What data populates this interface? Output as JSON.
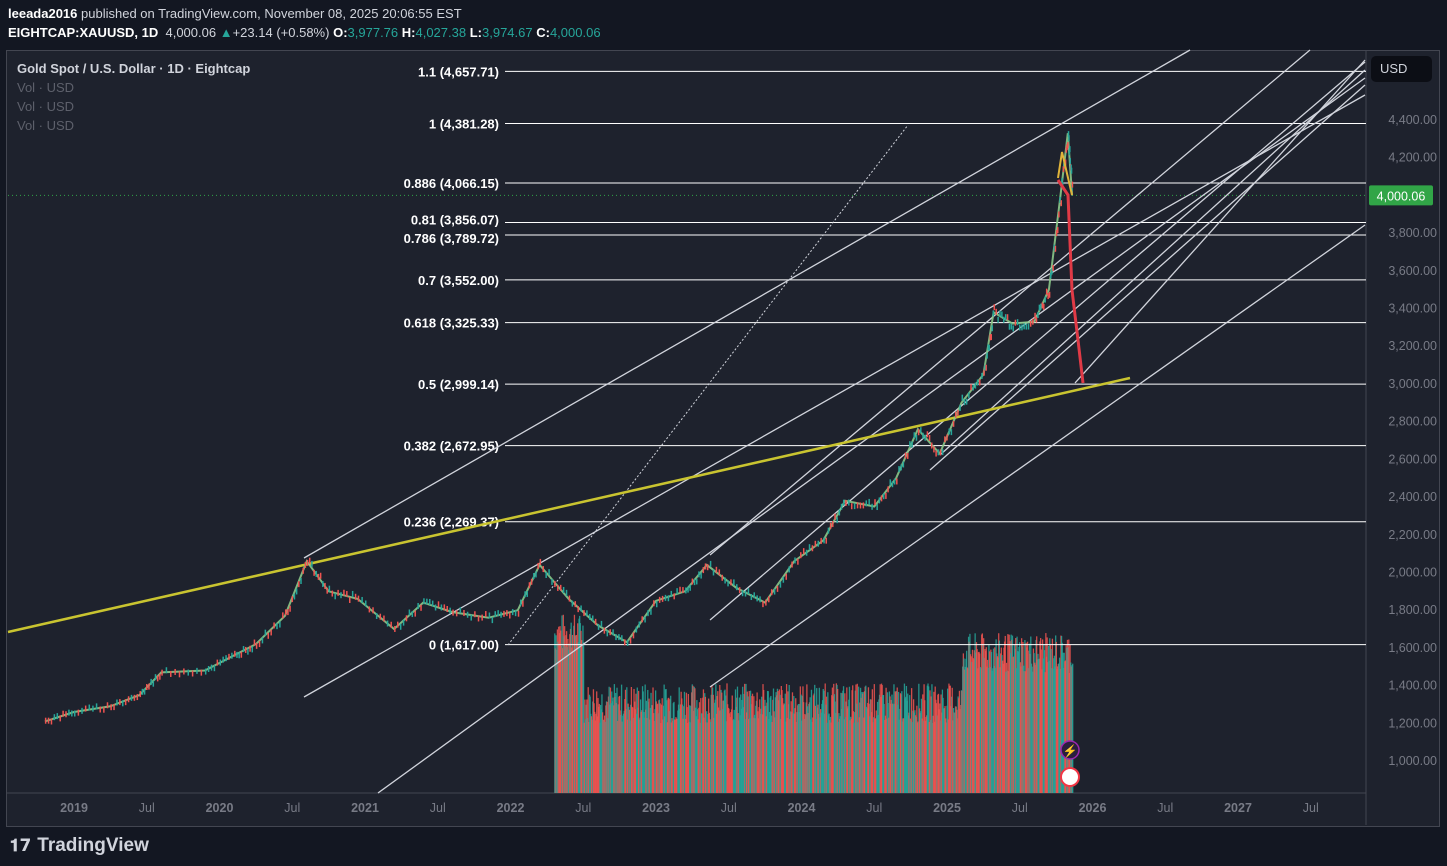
{
  "header": {
    "author": "leeada2016",
    "published": " published on TradingView.com, November 08, 2025 20:06:55 EST",
    "symbol": "EIGHTCAP:XAUUSD, 1D",
    "last": "4,000.06",
    "change": "+23.14 (+0.58%)",
    "o_label": "O:",
    "o": "3,977.76",
    "h_label": "H:",
    "h": "4,027.38",
    "l_label": "L:",
    "l": "3,974.67",
    "c_label": "C:",
    "c": "4,000.06"
  },
  "legend": {
    "title": "Gold Spot / U.S. Dollar · 1D · Eightcap",
    "vol": [
      "Vol · USD",
      "Vol · USD",
      "Vol · USD"
    ]
  },
  "currency": "USD",
  "price_tag": "4,000.06",
  "colors": {
    "bg": "#1e222d",
    "up": "#26a69a",
    "down": "#ef5350",
    "trend": "#c9c430",
    "fib": "#ffffff",
    "tag": "#31a547"
  },
  "brand": "TradingView",
  "chart_data": {
    "type": "line",
    "title": "Gold Spot / U.S. Dollar · 1D · Eightcap",
    "ylim": [
      850,
      4800
    ],
    "y_ticks": [
      "4,400.00",
      "4,200.00",
      "4,000.00",
      "3,800.00",
      "3,600.00",
      "3,400.00",
      "3,200.00",
      "3,000.00",
      "2,800.00",
      "2,600.00",
      "2,400.00",
      "2,200.00",
      "2,000.00",
      "1,800.00",
      "1,600.00",
      "1,400.00",
      "1,200.00",
      "1,000.00"
    ],
    "y_tick_values": [
      4400,
      4200,
      4000,
      3800,
      3600,
      3400,
      3200,
      3000,
      2800,
      2600,
      2400,
      2200,
      2000,
      1800,
      1600,
      1400,
      1200,
      1000
    ],
    "x_ticks": [
      "2019",
      "Jul",
      "2020",
      "Jul",
      "2021",
      "Jul",
      "2022",
      "Jul",
      "2023",
      "Jul",
      "2024",
      "Jul",
      "2025",
      "Jul",
      "2026",
      "Jul",
      "2027",
      "Jul"
    ],
    "x_tick_values": [
      2019,
      2019.5,
      2020,
      2020.5,
      2021,
      2021.5,
      2022,
      2022.5,
      2023,
      2023.5,
      2024,
      2024.5,
      2025,
      2025.5,
      2026,
      2026.5,
      2027,
      2027.5
    ],
    "series": [
      {
        "name": "XAUUSD",
        "x": [
          2018.8,
          2019.0,
          2019.25,
          2019.45,
          2019.6,
          2019.9,
          2020.1,
          2020.25,
          2020.45,
          2020.6,
          2020.75,
          2020.95,
          2021.2,
          2021.4,
          2021.6,
          2021.85,
          2022.05,
          2022.2,
          2022.4,
          2022.6,
          2022.8,
          2023.0,
          2023.2,
          2023.35,
          2023.55,
          2023.75,
          2023.95,
          2024.15,
          2024.3,
          2024.5,
          2024.65,
          2024.8,
          2024.95,
          2025.1,
          2025.25,
          2025.32,
          2025.45,
          2025.6,
          2025.7,
          2025.78,
          2025.83,
          2025.86
        ],
        "y": [
          1210,
          1260,
          1290,
          1350,
          1470,
          1480,
          1560,
          1620,
          1770,
          2060,
          1900,
          1860,
          1700,
          1840,
          1790,
          1760,
          1800,
          2040,
          1860,
          1720,
          1630,
          1850,
          1900,
          2040,
          1920,
          1840,
          2060,
          2170,
          2380,
          2350,
          2500,
          2760,
          2630,
          2900,
          3050,
          3380,
          3320,
          3330,
          3500,
          4000,
          4330,
          4000
        ]
      },
      {
        "name": "Volume",
        "x_range": [
          2022.3,
          2025.86
        ]
      }
    ],
    "fib_levels": [
      {
        "label": "1.1 (4,657.71)",
        "value": 4657.71
      },
      {
        "label": "1 (4,381.28)",
        "value": 4381.28
      },
      {
        "label": "0.886 (4,066.15)",
        "value": 4066.15
      },
      {
        "label": "0.81 (3,856.07)",
        "value": 3856.07
      },
      {
        "label": "0.786 (3,789.72)",
        "value": 3789.72
      },
      {
        "label": "0.7 (3,552.00)",
        "value": 3552
      },
      {
        "label": "0.618 (3,325.33)",
        "value": 3325.33
      },
      {
        "label": "0.5 (2,999.14)",
        "value": 2999.14
      },
      {
        "label": "0.382 (2,672.95)",
        "value": 2672.95
      },
      {
        "label": "0.236 (2,269.37)",
        "value": 2269.37
      },
      {
        "label": "0 (1,617.00)",
        "value": 1617
      }
    ],
    "last_price": 4000.06
  }
}
